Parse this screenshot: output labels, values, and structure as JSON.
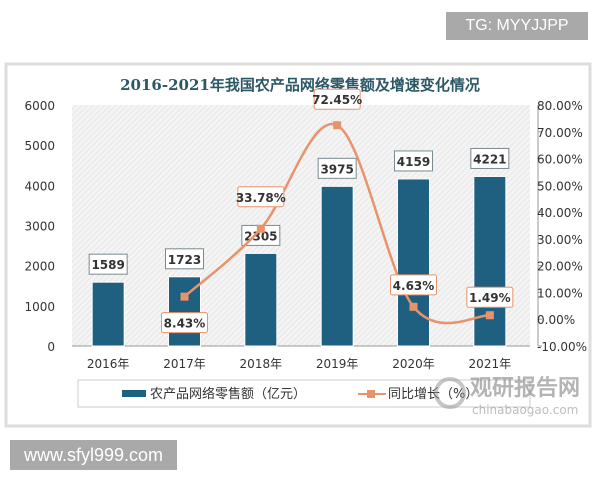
{
  "watermarks": {
    "tg": "TG: MYYJJPP",
    "site": "www.sfyl999.com",
    "logo_cn": "观研报告网",
    "logo_en": "chinabaogao.com"
  },
  "chart_data": {
    "type": "bar+line",
    "title": "2016-2021年我国农产品网络零售额及增速变化情况",
    "categories": [
      "2016年",
      "2017年",
      "2018年",
      "2019年",
      "2020年",
      "2021年"
    ],
    "series": [
      {
        "name": "农产品网络零售额（亿元）",
        "type": "bar",
        "axis": "left",
        "color": "#1f5f7f",
        "values": [
          1589,
          1723,
          2305,
          3975,
          4159,
          4221
        ],
        "labels": [
          "1589",
          "1723",
          "2305",
          "3975",
          "4159",
          "4221"
        ]
      },
      {
        "name": "同比增长（%）",
        "type": "line",
        "axis": "right",
        "color": "#e8936b",
        "values": [
          null,
          8.43,
          33.78,
          72.45,
          4.63,
          1.49
        ],
        "labels": [
          "",
          "8.43%",
          "33.78%",
          "72.45%",
          "4.63%",
          "1.49%"
        ]
      }
    ],
    "y_left": {
      "range": [
        0,
        6000
      ],
      "ticks": [
        "0",
        "1000",
        "2000",
        "3000",
        "4000",
        "5000",
        "6000"
      ]
    },
    "y_right": {
      "range": [
        -10,
        80
      ],
      "ticks": [
        "-10.00%",
        "0.00%",
        "10.00%",
        "20.00%",
        "30.00%",
        "40.00%",
        "50.00%",
        "60.00%",
        "70.00%",
        "80.00%"
      ]
    },
    "legend": "bottom",
    "grid": false
  }
}
